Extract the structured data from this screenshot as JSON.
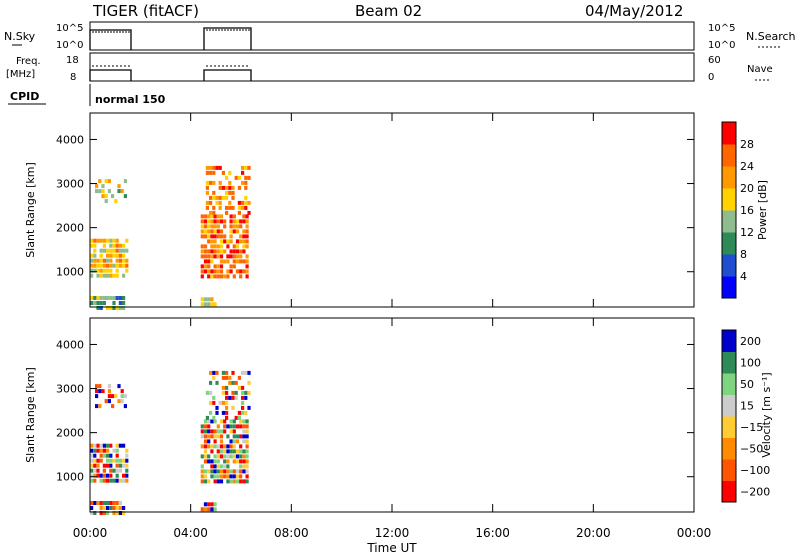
{
  "header": {
    "title": "TIGER (fitACF)",
    "beam": "Beam 02",
    "date": "04/May/2012"
  },
  "nsky_panel": {
    "left_label": "N.Sky",
    "left_ticks": [
      "10^5",
      "10^0"
    ],
    "right_ticks": [
      "10^5",
      "10^0"
    ],
    "right_label": "N.Search"
  },
  "freq_panel": {
    "left_label_1": "Freq.",
    "left_label_2": "[MHz]",
    "left_ticks": [
      "18",
      "8"
    ],
    "right_ticks": [
      "60",
      "0"
    ],
    "right_label": "Nave"
  },
  "cpid_panel": {
    "left_label": "CPID",
    "mode": "normal 150"
  },
  "colors": {
    "power": [
      "#0000ff",
      "#1f4fd0",
      "#2e8b57",
      "#8fbc8f",
      "#ffd200",
      "#ff9900",
      "#ff6600",
      "#ff0000"
    ],
    "velocity": [
      "#ff0000",
      "#ff5500",
      "#ff8c00",
      "#ffcc33",
      "#cccccc",
      "#7fd47f",
      "#2e8b57",
      "#0000cd"
    ]
  },
  "chart_data": [
    {
      "type": "heatmap",
      "panel": "power",
      "ylabel": "Slant Range [km]",
      "yticks": [
        "1000",
        "2000",
        "3000",
        "4000"
      ],
      "ylim": [
        200,
        4600
      ],
      "xlim": [
        0,
        24
      ],
      "colorbar_label": "Power [dB]",
      "colorbar_ticks": [
        "4",
        "8",
        "12",
        "16",
        "20",
        "24",
        "28"
      ],
      "colorbar_range": [
        0,
        32
      ],
      "blocks": [
        {
          "t0": 0.0,
          "t1": 1.45,
          "r0": 900,
          "r1": 1750,
          "level": 0.62
        },
        {
          "t0": 0.0,
          "t1": 1.3,
          "r0": 200,
          "r1": 450,
          "level": 0.35
        },
        {
          "t0": 0.2,
          "t1": 1.4,
          "r0": 2600,
          "r1": 3100,
          "level": 0.55
        },
        {
          "t0": 4.4,
          "t1": 6.2,
          "r0": 900,
          "r1": 2300,
          "level": 0.82
        },
        {
          "t0": 4.6,
          "t1": 6.3,
          "r0": 2300,
          "r1": 3400,
          "level": 0.78
        },
        {
          "t0": 4.4,
          "t1": 5.0,
          "r0": 280,
          "r1": 420,
          "level": 0.6
        }
      ]
    },
    {
      "type": "heatmap",
      "panel": "velocity",
      "ylabel": "Slant Range [km]",
      "yticks": [
        "1000",
        "2000",
        "3000",
        "4000"
      ],
      "ylim": [
        200,
        4600
      ],
      "xlim": [
        0,
        24
      ],
      "xticks": [
        "00:00",
        "04:00",
        "08:00",
        "12:00",
        "16:00",
        "20:00",
        "00:00"
      ],
      "xlabel": "Time UT",
      "colorbar_label": "Velocity [m s⁻¹]",
      "colorbar_ticks": [
        "-200",
        "-100",
        "-50",
        "-15",
        "15",
        "50",
        "100",
        "200"
      ],
      "blocks": [
        {
          "t0": 0.0,
          "t1": 1.45,
          "r0": 900,
          "r1": 1750
        },
        {
          "t0": 0.0,
          "t1": 1.3,
          "r0": 200,
          "r1": 450
        },
        {
          "t0": 0.2,
          "t1": 1.4,
          "r0": 2600,
          "r1": 3100
        },
        {
          "t0": 4.4,
          "t1": 6.2,
          "r0": 900,
          "r1": 2300
        },
        {
          "t0": 4.6,
          "t1": 6.3,
          "r0": 2300,
          "r1": 3400
        },
        {
          "t0": 4.4,
          "t1": 5.0,
          "r0": 280,
          "r1": 420
        }
      ]
    }
  ]
}
